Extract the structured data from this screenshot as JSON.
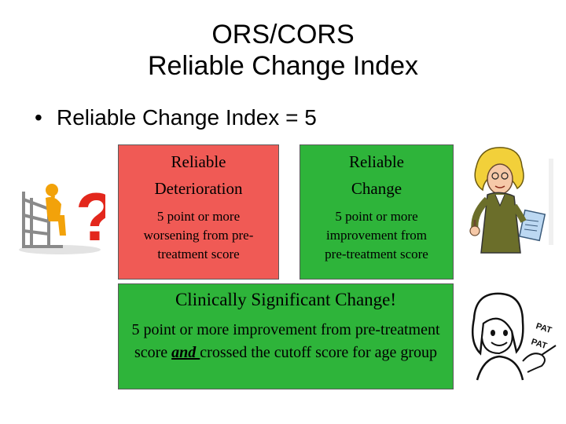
{
  "title": {
    "line1": "ORS/CORS",
    "line2": "Reliable Change Index"
  },
  "bullet": {
    "symbol": "•",
    "text": "Reliable Change Index = 5"
  },
  "boxes": {
    "deterioration": {
      "heading_line1": "Reliable",
      "heading_line2": "Deterioration",
      "body": "5 point or more worsening from pre-treatment score",
      "color": "#f05a55"
    },
    "change": {
      "heading_line1": "Reliable",
      "heading_line2": "Change",
      "body": "5 point or more improvement from pre-treatment score",
      "color": "#2eb43a"
    },
    "clinical": {
      "heading": "Clinically Significant Change!",
      "body_part1": "5 point or more improvement from pre-treatment score ",
      "body_emph": "and ",
      "body_part2": "crossed the cutoff score for age group",
      "color": "#2eb43a"
    }
  },
  "clipart": {
    "thinker": "thinking-figure-question-mark",
    "teacher": "woman-thumbs-up-clipboard",
    "pat": "woman-pat-on-back",
    "pat_text_1": "PAT",
    "pat_text_2": "PAT"
  }
}
